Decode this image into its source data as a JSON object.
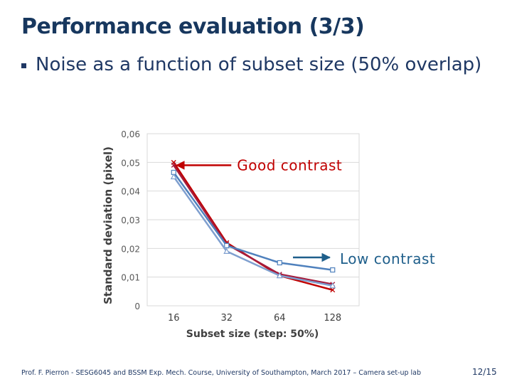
{
  "slide": {
    "title": "Performance evaluation (3/3)",
    "bullet": "Noise as a function of subset size (50% overlap)",
    "footer": "Prof. F. Pierron - SESG6045 and BSSM Exp. Mech. Course, University of Southampton, March 2017 – Camera set-up lab",
    "page": "12/15"
  },
  "chart_data": {
    "type": "line",
    "title": "",
    "xlabel": "Subset size (step: 50%)",
    "ylabel": "Standard deviation (pixel)",
    "categories": [
      "16",
      "32",
      "64",
      "128"
    ],
    "y_ticks": [
      "0",
      "0,01",
      "0,02",
      "0,03",
      "0,04",
      "0,05",
      "0,06"
    ],
    "ylim": [
      0,
      0.06
    ],
    "grid": true,
    "legend": "none",
    "series": [
      {
        "color": "#c00000",
        "marker": "x",
        "values": [
          0.05,
          0.022,
          0.0105,
          0.0055
        ]
      },
      {
        "color": "#a61c3c",
        "marker": "x",
        "values": [
          0.049,
          0.0215,
          0.011,
          0.0075
        ]
      },
      {
        "color": "#4f81bd",
        "marker": "square",
        "values": [
          0.0465,
          0.021,
          0.015,
          0.0125
        ]
      },
      {
        "color": "#7f9fcf",
        "marker": "triangle",
        "values": [
          0.045,
          0.019,
          0.0105,
          0.007
        ]
      }
    ],
    "annotations": [
      {
        "text": "Good contrast",
        "color": "#c00000",
        "points_to": {
          "category": "16",
          "value": 0.049
        }
      },
      {
        "text": "Low contrast",
        "color": "#1f5f8b",
        "points_to": {
          "category": "128",
          "value": 0.0125
        }
      }
    ]
  }
}
